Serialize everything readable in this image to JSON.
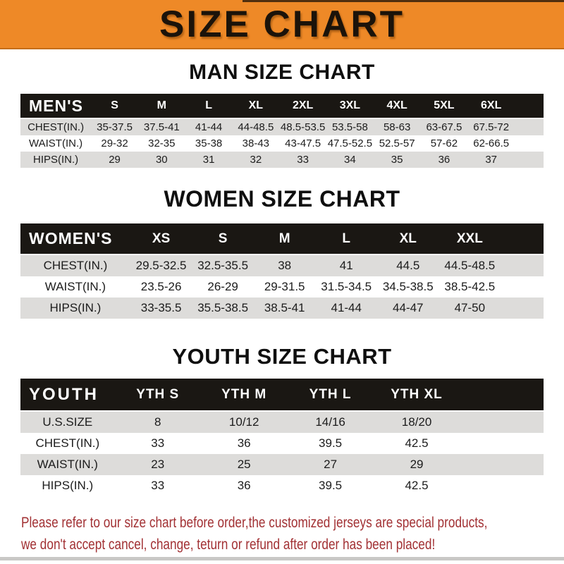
{
  "header": {
    "title": "SIZE CHART"
  },
  "sections": [
    {
      "title": "MAN SIZE CHART",
      "table": {
        "corner_label": "MEN'S",
        "columns": [
          "S",
          "M",
          "L",
          "XL",
          "2XL",
          "3XL",
          "4XL",
          "5XL",
          "6XL"
        ],
        "rows": [
          {
            "label": "CHEST(IN.)",
            "values": [
              "35-37.5",
              "37.5-41",
              "41-44",
              "44-48.5",
              "48.5-53.5",
              "53.5-58",
              "58-63",
              "63-67.5",
              "67.5-72"
            ]
          },
          {
            "label": "WAIST(IN.)",
            "values": [
              "29-32",
              "32-35",
              "35-38",
              "38-43",
              "43-47.5",
              "47.5-52.5",
              "52.5-57",
              "57-62",
              "62-66.5"
            ]
          },
          {
            "label": "HIPS(IN.)",
            "values": [
              "29",
              "30",
              "31",
              "32",
              "33",
              "34",
              "35",
              "36",
              "37"
            ]
          }
        ]
      }
    },
    {
      "title": "WOMEN SIZE CHART",
      "table": {
        "corner_label": "WOMEN'S",
        "columns": [
          "XS",
          "S",
          "M",
          "L",
          "XL",
          "XXL"
        ],
        "rows": [
          {
            "label": "CHEST(IN.)",
            "values": [
              "29.5-32.5",
              "32.5-35.5",
              "38",
              "41",
              "44.5",
              "44.5-48.5"
            ]
          },
          {
            "label": "WAIST(IN.)",
            "values": [
              "23.5-26",
              "26-29",
              "29-31.5",
              "31.5-34.5",
              "34.5-38.5",
              "38.5-42.5"
            ]
          },
          {
            "label": "HIPS(IN.)",
            "values": [
              "33-35.5",
              "35.5-38.5",
              "38.5-41",
              "41-44",
              "44-47",
              "47-50"
            ]
          }
        ]
      }
    },
    {
      "title": "YOUTH SIZE CHART",
      "table": {
        "corner_label": "YOUTH",
        "columns": [
          "YTH S",
          "YTH M",
          "YTH L",
          "YTH XL"
        ],
        "rows": [
          {
            "label": "U.S.SIZE",
            "values": [
              "8",
              "10/12",
              "14/16",
              "18/20"
            ]
          },
          {
            "label": "CHEST(IN.)",
            "values": [
              "33",
              "36",
              "39.5",
              "42.5"
            ]
          },
          {
            "label": "WAIST(IN.)",
            "values": [
              "23",
              "25",
              "27",
              "29"
            ]
          },
          {
            "label": "HIPS(IN.)",
            "values": [
              "33",
              "36",
              "39.5",
              "42.5"
            ]
          }
        ]
      }
    }
  ],
  "footer": {
    "line1": "Please refer to our size chart before order,the customized jerseys are special products,",
    "line2": "we don't accept cancel, change, teturn or refund after order has been placed!"
  },
  "colors": {
    "banner_orange": "#EE8927",
    "table_header_black": "#1A1713",
    "row_gray": "#DDDCDA",
    "row_white": "#FFFFFF",
    "note_red": "#A23134"
  }
}
